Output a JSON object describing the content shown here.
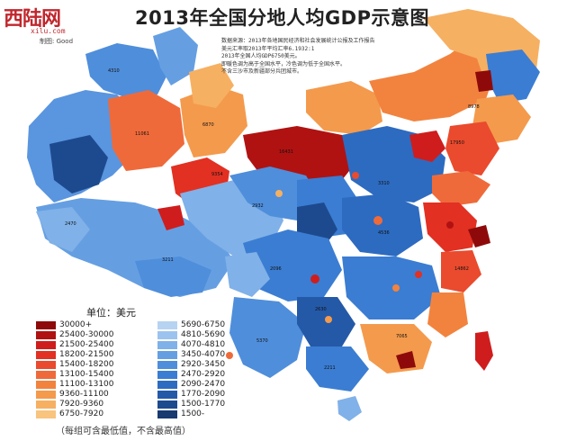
{
  "title": "2013年全国分地人均GDP示意图",
  "logo": {
    "main": "西陆网",
    "site": "xilu.com",
    "credit": "制图: Good"
  },
  "note_lines": [
    "数据来源：2013年各地国民经济和社会发展统计公报及工作报告",
    "美元汇率取2013年平均汇率6.1932:1",
    "2013年全国人均GDP6750美元。",
    "即暖色调为高于全国水平，冷色调为低于全国水平。",
    "不含三沙市及新疆部分兵团城市。"
  ],
  "legend": {
    "unit_label": "单位：美元",
    "footnote": "（每组可含最低值，不含最高值）",
    "warm": [
      {
        "label": "30000+",
        "color": "#8e0a0a"
      },
      {
        "label": "25400-30000",
        "color": "#b01212"
      },
      {
        "label": "21500-25400",
        "color": "#cf1d1d"
      },
      {
        "label": "18200-21500",
        "color": "#e23022"
      },
      {
        "label": "15400-18200",
        "color": "#ea4a2d"
      },
      {
        "label": "13100-15400",
        "color": "#ef6a3a"
      },
      {
        "label": "11100-13100",
        "color": "#f2833e"
      },
      {
        "label": "9360-11100",
        "color": "#f49a4c"
      },
      {
        "label": "7920-9360",
        "color": "#f6b062"
      },
      {
        "label": "6750-7920",
        "color": "#f8c47e"
      }
    ],
    "cool": [
      {
        "label": "5690-6750",
        "color": "#b7d3f2"
      },
      {
        "label": "4810-5690",
        "color": "#9cc3ee"
      },
      {
        "label": "4070-4810",
        "color": "#80b1e8"
      },
      {
        "label": "3450-4070",
        "color": "#659fe2"
      },
      {
        "label": "2920-3450",
        "color": "#4f8edb"
      },
      {
        "label": "2470-2920",
        "color": "#3b7dd2"
      },
      {
        "label": "2090-2470",
        "color": "#2d6bc0"
      },
      {
        "label": "1770-2090",
        "color": "#2459a8"
      },
      {
        "label": "1500-1770",
        "color": "#1d4a8e"
      },
      {
        "label": "1500-",
        "color": "#173a70"
      }
    ]
  },
  "map_labels": [
    "2470",
    "11061",
    "6870",
    "4310",
    "9354",
    "16431",
    "17950",
    "8978",
    "2932",
    "3211",
    "2096",
    "4536",
    "7065",
    "2630",
    "14862",
    "5370",
    "2211",
    "3310"
  ]
}
